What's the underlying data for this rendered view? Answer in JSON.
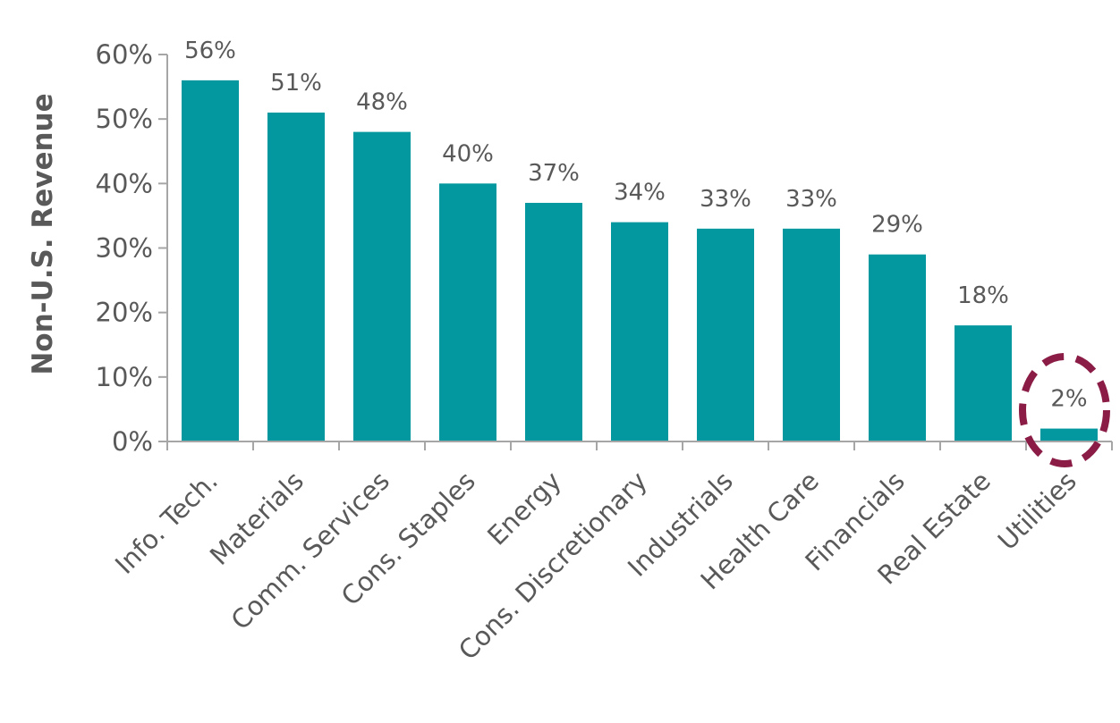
{
  "chart_data": {
    "type": "bar",
    "title": "",
    "xlabel": "",
    "ylabel": "Non-U.S. Revenue",
    "ylim": [
      0,
      60
    ],
    "yticks": [
      0,
      10,
      20,
      30,
      40,
      50,
      60
    ],
    "ytick_labels": [
      "0%",
      "10%",
      "20%",
      "30%",
      "40%",
      "50%",
      "60%"
    ],
    "categories": [
      "Info. Tech.",
      "Materials",
      "Comm. Services",
      "Cons. Staples",
      "Energy",
      "Cons. Discretionary",
      "Industrials",
      "Health Care",
      "Financials",
      "Real Estate",
      "Utilities"
    ],
    "values": [
      56,
      51,
      48,
      40,
      37,
      34,
      33,
      33,
      29,
      18,
      2
    ],
    "data_labels": [
      "56%",
      "51%",
      "48%",
      "40%",
      "37%",
      "34%",
      "33%",
      "33%",
      "29%",
      "18%",
      "2%"
    ],
    "bar_color": "#03979f",
    "highlight": {
      "category": "Utilities",
      "shape": "dashed-ellipse",
      "color": "#8a1c45"
    },
    "grid": false,
    "legend": "none"
  }
}
